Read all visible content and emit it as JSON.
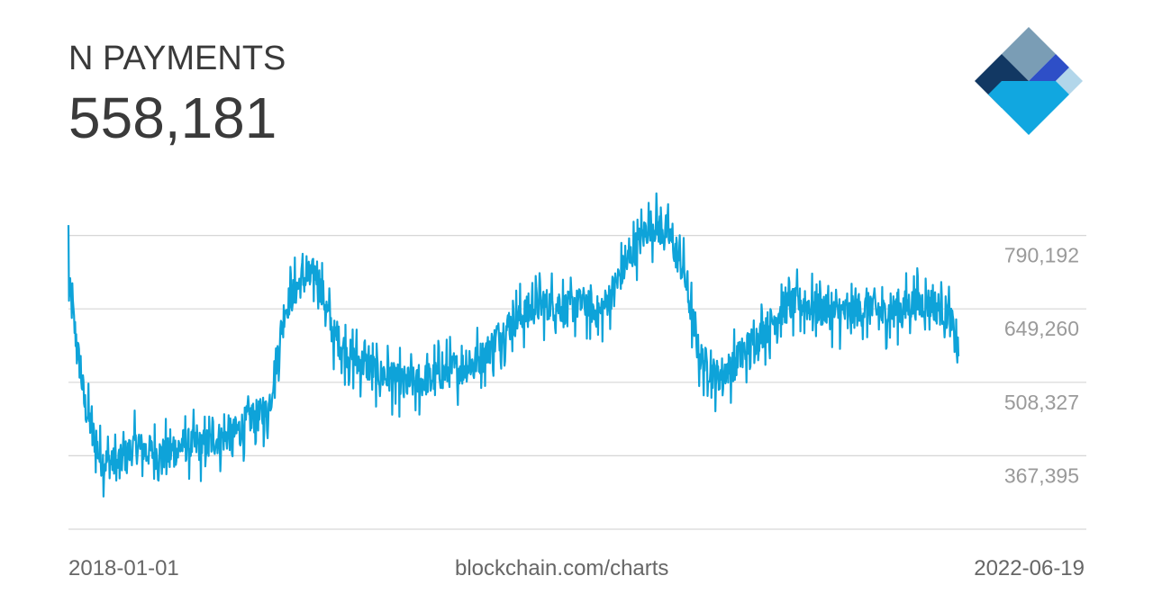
{
  "header": {
    "metric_name": "N PAYMENTS",
    "current_value": "558,181"
  },
  "footer": {
    "start_date": "2018-01-01",
    "source": "blockchain.com/charts",
    "end_date": "2022-06-19"
  },
  "logo": {
    "icon": "blockchain-logo-icon",
    "colors": [
      "#7a9db5",
      "#123863",
      "#2e4fc7",
      "#b2d6ea",
      "#11a7e0"
    ]
  },
  "chart_data": {
    "type": "line",
    "title": "N PAYMENTS",
    "xlabel": "",
    "ylabel": "",
    "x_range": [
      "2018-01-01",
      "2022-06-19"
    ],
    "ylim": [
      226463,
      931124
    ],
    "y_ticks": [
      367395,
      508327,
      649260,
      790192
    ],
    "y_tick_labels": [
      "790,192",
      "649,260",
      "508,327",
      "367,395"
    ],
    "grid": true,
    "color": "#0ea3d9",
    "series": [
      {
        "name": "",
        "x": [
          "2018-01-01",
          "2018-02-01",
          "2018-03-01",
          "2018-04-01",
          "2018-05-01",
          "2018-06-01",
          "2018-07-01",
          "2018-08-01",
          "2018-09-01",
          "2018-10-01",
          "2018-11-01",
          "2018-12-01",
          "2019-01-01",
          "2019-02-01",
          "2019-03-01",
          "2019-04-01",
          "2019-05-01",
          "2019-06-01",
          "2019-07-01",
          "2019-08-01",
          "2019-09-01",
          "2019-10-01",
          "2019-11-01",
          "2019-12-01",
          "2020-01-01",
          "2020-02-01",
          "2020-03-01",
          "2020-04-01",
          "2020-05-01",
          "2020-06-01",
          "2020-07-01",
          "2020-08-01",
          "2020-09-01",
          "2020-10-01",
          "2020-11-01",
          "2020-12-01",
          "2021-01-01",
          "2021-02-01",
          "2021-03-01",
          "2021-04-01",
          "2021-05-01",
          "2021-06-01",
          "2021-07-01",
          "2021-08-01",
          "2021-09-01",
          "2021-10-01",
          "2021-11-01",
          "2021-12-01",
          "2022-01-01",
          "2022-02-01",
          "2022-03-01",
          "2022-04-01",
          "2022-05-01",
          "2022-06-01",
          "2022-06-19"
        ],
        "values": [
          700000,
          460000,
          360000,
          350000,
          385000,
          375000,
          370000,
          390000,
          385000,
          400000,
          410000,
          440000,
          450000,
          650000,
          700000,
          720000,
          600000,
          560000,
          540000,
          520000,
          510000,
          505000,
          520000,
          530000,
          540000,
          560000,
          600000,
          630000,
          650000,
          660000,
          650000,
          660000,
          640000,
          700000,
          760000,
          810000,
          800000,
          720000,
          560000,
          520000,
          540000,
          580000,
          610000,
          650000,
          660000,
          650000,
          640000,
          640000,
          650000,
          640000,
          650000,
          660000,
          660000,
          640000,
          558181
        ]
      }
    ]
  }
}
